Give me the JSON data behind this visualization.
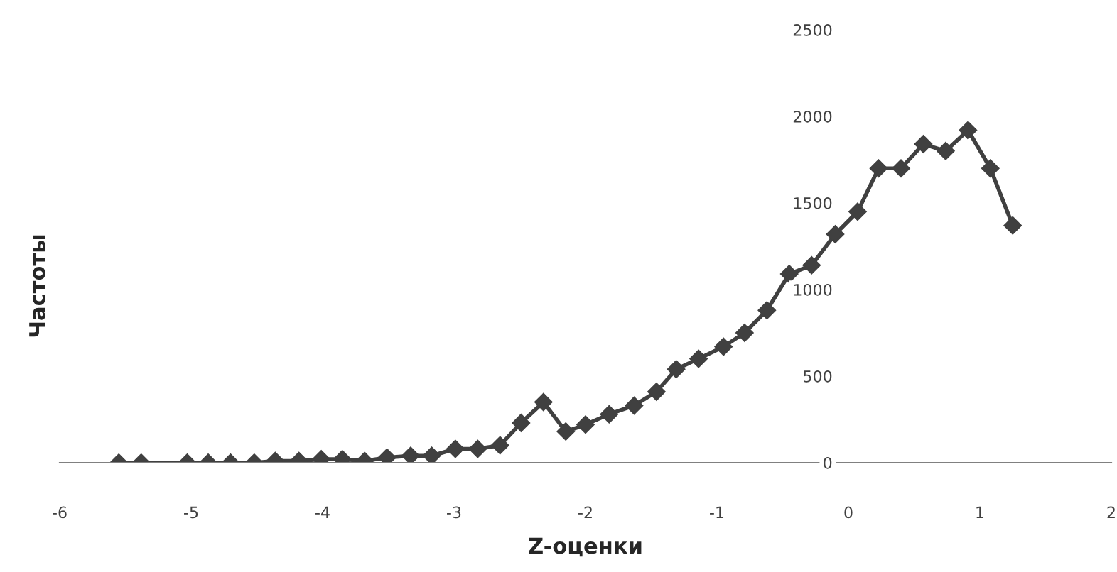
{
  "chart_data": {
    "type": "line",
    "xlabel": "Z-оценки",
    "ylabel": "Частоты",
    "xlim": [
      -6,
      2
    ],
    "xticks": [
      -6,
      -5,
      -4,
      -3,
      -2,
      -1,
      0,
      1,
      2
    ],
    "ylim": [
      0,
      2500
    ],
    "yticks": [
      0,
      500,
      1000,
      1500,
      2000,
      2500
    ],
    "grid": false,
    "legend": false,
    "marker": "diamond",
    "line_style": "solid",
    "series": [
      {
        "color": "#404040",
        "x": [
          -5.55,
          -5.38,
          -5.03,
          -4.87,
          -4.7,
          -4.52,
          -4.36,
          -4.18,
          -4.01,
          -3.85,
          -3.68,
          -3.51,
          -3.33,
          -3.17,
          -2.99,
          -2.82,
          -2.65,
          -2.49,
          -2.32,
          -2.15,
          -2.0,
          -1.82,
          -1.63,
          -1.46,
          -1.31,
          -1.14,
          -0.95,
          -0.79,
          -0.62,
          -0.45,
          -0.28,
          -0.1,
          0.07,
          0.23,
          0.4,
          0.57,
          0.74,
          0.91,
          1.08,
          1.25
        ],
        "values": [
          0,
          0,
          0,
          0,
          0,
          0,
          10,
          10,
          20,
          20,
          10,
          30,
          40,
          40,
          80,
          80,
          100,
          230,
          350,
          180,
          220,
          280,
          330,
          410,
          540,
          600,
          670,
          750,
          880,
          1090,
          1140,
          1320,
          1450,
          1700,
          1700,
          1840,
          1800,
          1920,
          1700,
          1370
        ]
      }
    ]
  }
}
